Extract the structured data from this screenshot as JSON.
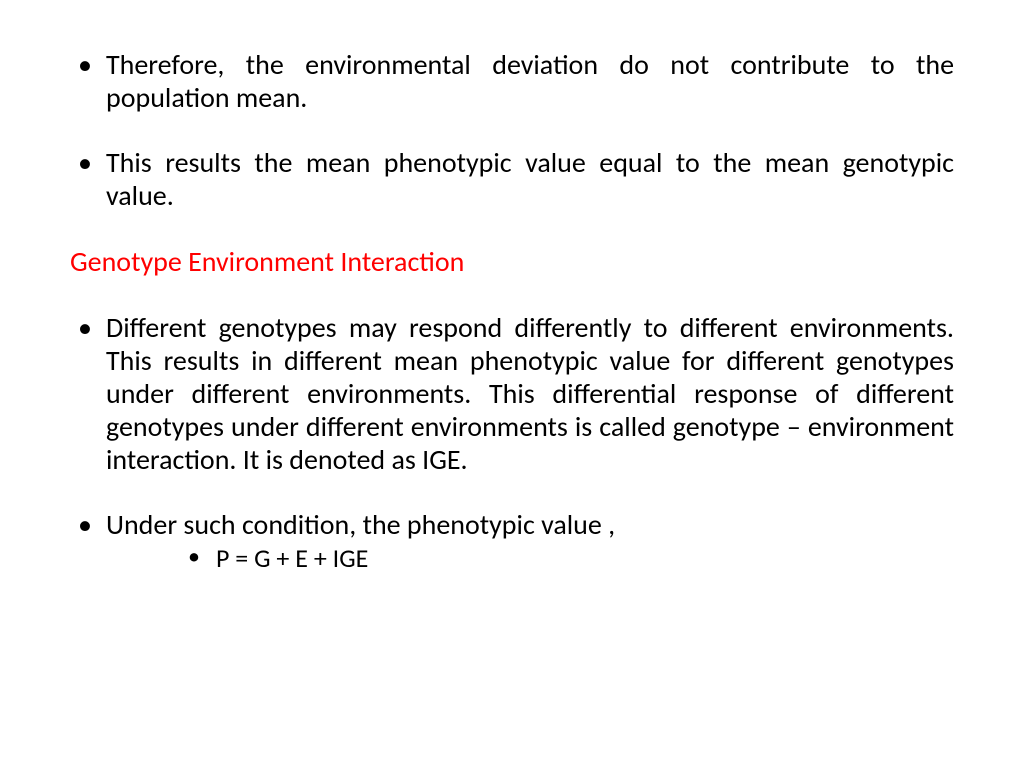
{
  "bullets": {
    "b1": "Therefore, the environmental deviation do not contribute to the population mean.",
    "b2": "This results the mean phenotypic value equal to the mean genotypic value.",
    "b3": "Different genotypes may respond differently to different environments. This results in different mean phenotypic value for different genotypes under different environments. This differential response of different genotypes under different environments is called genotype – environment interaction. It is denoted as IGE.",
    "b4": "Under such condition, the phenotypic value ,",
    "sub1": "P = G + E + IGE"
  },
  "heading": "Genotype Environment Interaction",
  "colors": {
    "heading": "#ff0000",
    "body": "#000000",
    "background": "#ffffff"
  },
  "typography": {
    "body_fontsize": 28,
    "sub_fontsize": 26,
    "font_family": "Calibri",
    "alignment": "justify"
  }
}
